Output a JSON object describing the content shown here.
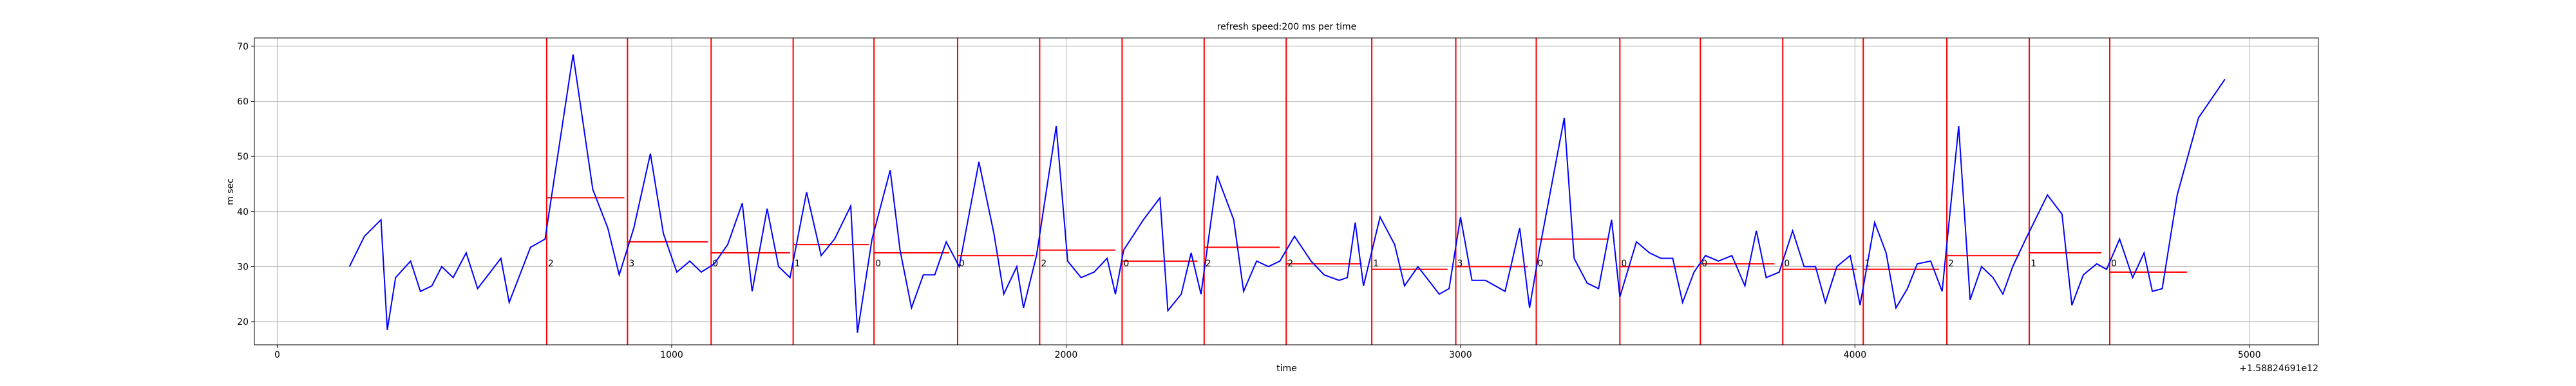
{
  "chart_data": {
    "type": "line",
    "title": "refresh speed:200 ms per time",
    "x_label": "time",
    "y_label": "m sec",
    "x_offset_label": "+1.58824691e12",
    "xlim": [
      -58,
      5175
    ],
    "ylim": [
      15.8,
      71.5
    ],
    "xticks": [
      0,
      1000,
      2000,
      3000,
      4000,
      5000
    ],
    "yticks": [
      20,
      30,
      40,
      50,
      60,
      70
    ],
    "grid": true,
    "x": [
      183,
      221,
      263,
      279,
      300,
      338,
      363,
      392,
      417,
      446,
      479,
      508,
      567,
      588,
      642,
      679,
      750,
      800,
      838,
      867,
      904,
      946,
      979,
      1013,
      1046,
      1075,
      1108,
      1142,
      1179,
      1204,
      1242,
      1271,
      1300,
      1342,
      1379,
      1413,
      1454,
      1471,
      1508,
      1554,
      1579,
      1608,
      1638,
      1667,
      1696,
      1729,
      1779,
      1817,
      1842,
      1875,
      1892,
      1925,
      1975,
      2004,
      2038,
      2071,
      2104,
      2125,
      2146,
      2196,
      2238,
      2258,
      2292,
      2317,
      2342,
      2383,
      2425,
      2450,
      2483,
      2513,
      2542,
      2579,
      2621,
      2654,
      2692,
      2713,
      2733,
      2754,
      2796,
      2833,
      2858,
      2892,
      2946,
      2971,
      3000,
      3029,
      3063,
      3113,
      3150,
      3175,
      3200,
      3263,
      3288,
      3321,
      3350,
      3383,
      3404,
      3446,
      3479,
      3508,
      3538,
      3563,
      3592,
      3621,
      3654,
      3688,
      3721,
      3750,
      3775,
      3808,
      3842,
      3871,
      3900,
      3925,
      3954,
      3988,
      4013,
      4050,
      4079,
      4104,
      4133,
      4158,
      4192,
      4221,
      4263,
      4292,
      4321,
      4350,
      4375,
      4400,
      4433,
      4488,
      4525,
      4550,
      4579,
      4613,
      4638,
      4671,
      4704,
      4733,
      4754,
      4779,
      4817,
      4871,
      4938
    ],
    "series": [
      {
        "color": "#0000ff",
        "values": [
          30,
          35.5,
          38.5,
          18.5,
          28,
          31,
          25.5,
          26.5,
          30,
          28,
          32.5,
          26,
          31.5,
          23.5,
          33.5,
          35,
          68.5,
          44,
          37,
          28.5,
          37,
          50.5,
          36,
          29,
          31,
          29,
          30.5,
          34,
          41.5,
          25.5,
          40.5,
          30,
          28,
          43.5,
          32,
          35,
          41,
          18,
          35,
          47.5,
          33,
          22.5,
          28.5,
          28.5,
          34.5,
          30,
          49,
          36,
          25,
          30,
          22.5,
          32,
          55.5,
          31,
          28,
          29,
          31.5,
          25,
          33,
          38.5,
          42.5,
          22,
          25,
          32.5,
          25,
          46.5,
          38.5,
          25.5,
          31,
          30,
          31,
          35.5,
          31,
          28.5,
          27.5,
          28,
          38,
          26.5,
          39,
          34,
          26.5,
          30,
          25,
          26,
          39,
          27.5,
          27.5,
          25.5,
          37,
          22.5,
          33,
          57,
          31.5,
          27,
          26,
          38.5,
          24.5,
          34.5,
          32.5,
          31.5,
          31.5,
          23.5,
          29,
          32,
          31,
          32,
          26.5,
          36.5,
          28,
          29,
          36.5,
          30,
          30,
          23.5,
          30,
          32,
          23,
          38,
          32.5,
          22.5,
          26,
          30.5,
          31,
          25.5,
          55.5,
          24,
          30,
          28,
          25,
          30,
          35,
          43,
          39.5,
          23,
          28.5,
          30.5,
          29.5,
          35,
          28,
          32.5,
          25.5,
          26,
          43,
          57,
          64
        ]
      }
    ],
    "events": {
      "color": "#ff0000",
      "x": [
        683,
        888,
        1100,
        1308,
        1513,
        1725,
        1933,
        2142,
        2350,
        2558,
        2775,
        2988,
        3192,
        3404,
        3608,
        3817,
        4021,
        4233,
        4442,
        4646
      ],
      "labels": [
        "2",
        "3",
        "0",
        "1",
        "0",
        "0",
        "2",
        "0",
        "2",
        "2",
        "1",
        "3",
        "0",
        "0",
        "0",
        "0",
        "1",
        "2",
        "1",
        "0"
      ],
      "mean": [
        42.5,
        34.5,
        32.5,
        34,
        32.5,
        32,
        33,
        31,
        33.5,
        30.5,
        29.5,
        30,
        35,
        30,
        30.5,
        29.5,
        29.5,
        32,
        32.5,
        29
      ],
      "mean_end": [
        880,
        1092,
        1300,
        1500,
        1704,
        1920,
        2125,
        2333,
        2542,
        2750,
        2967,
        3171,
        3375,
        3592,
        3796,
        4004,
        4213,
        4417,
        4625,
        4842
      ]
    }
  }
}
